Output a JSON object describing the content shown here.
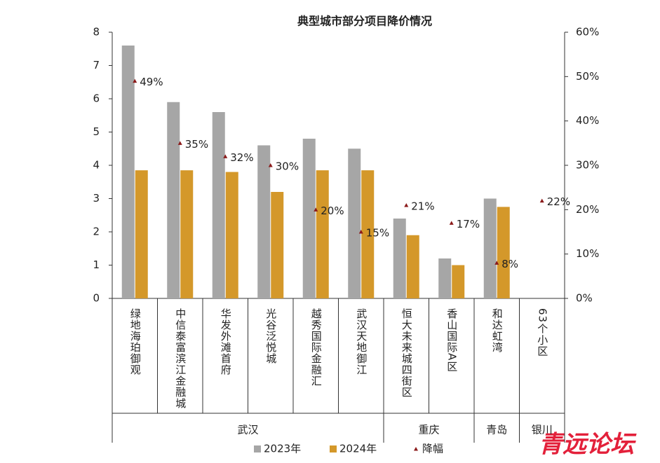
{
  "chart_data": {
    "type": "bar",
    "title": "典型城市部分项目降价情况",
    "categories": [
      "绿地海珀御观",
      "中信泰富滨江金融城",
      "华发外滩首府",
      "光谷泛悦城",
      "越秀国际金融汇",
      "武汉天地御江",
      "恒大未来城四街区",
      "香山国际A区",
      "和达虹湾",
      "63个小区"
    ],
    "category_groups": [
      "武汉",
      "武汉",
      "武汉",
      "武汉",
      "武汉",
      "武汉",
      "重庆",
      "重庆",
      "青岛",
      "银川"
    ],
    "series": [
      {
        "name": "2023年",
        "color": "#a6a6a6",
        "values": [
          7.6,
          5.9,
          5.6,
          4.6,
          4.8,
          4.5,
          2.4,
          1.2,
          3.0,
          null
        ]
      },
      {
        "name": "2024年",
        "color": "#d4982a",
        "values": [
          3.85,
          3.85,
          3.8,
          3.2,
          3.85,
          3.85,
          1.9,
          1.0,
          2.75,
          null
        ]
      },
      {
        "name": "降幅",
        "color": "#8b1a1a",
        "axis": "y2",
        "marker": "triangle",
        "values": [
          49,
          35,
          32,
          30,
          20,
          15,
          21,
          17,
          8,
          22
        ],
        "value_labels": [
          "49%",
          "35%",
          "32%",
          "30%",
          "20%",
          "15%",
          "21%",
          "17%",
          "8%",
          "22%"
        ]
      }
    ],
    "ylim": [
      0,
      8
    ],
    "yticks": [
      0,
      1,
      2,
      3,
      4,
      5,
      6,
      7,
      8
    ],
    "y2lim": [
      0,
      60
    ],
    "y2ticks": [
      {
        "value": 0,
        "label": "0%"
      },
      {
        "value": 10,
        "label": "10%"
      },
      {
        "value": 20,
        "label": "20%"
      },
      {
        "value": 30,
        "label": "30%"
      },
      {
        "value": 40,
        "label": "40%"
      },
      {
        "value": 50,
        "label": "50%"
      },
      {
        "value": 60,
        "label": "60%"
      }
    ],
    "legend": "bottom",
    "watermark": "青远论坛"
  }
}
